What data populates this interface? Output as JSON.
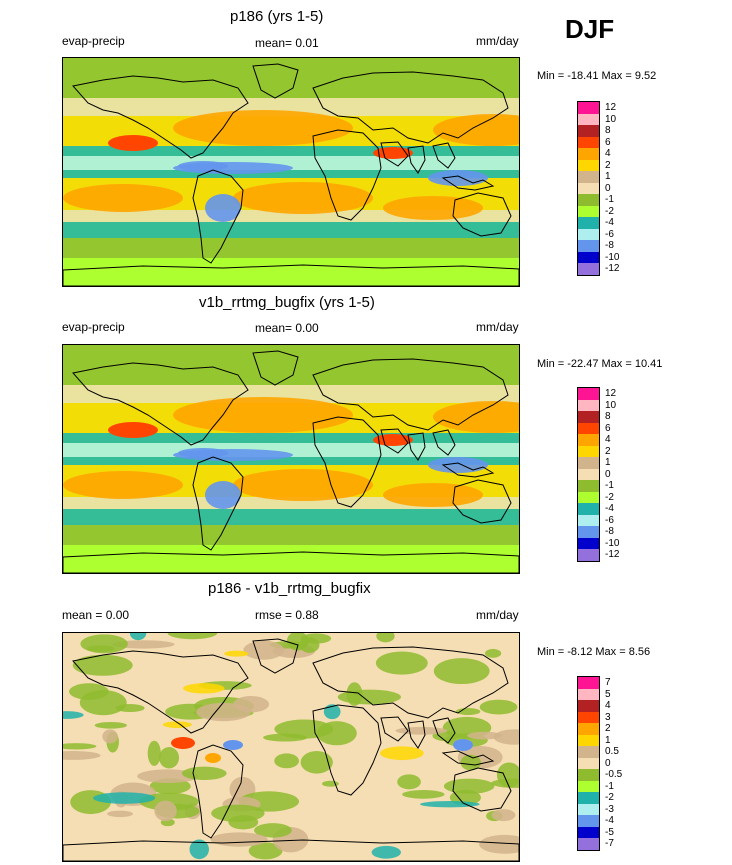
{
  "header": {
    "season": "DJF"
  },
  "panels": [
    {
      "title": "p186 (yrs 1-5)",
      "left_label": "evap-precip",
      "center_label": "mean=  0.01",
      "right_label": "mm/day",
      "minmax": "Min = -18.41 Max =   9.52",
      "colorbar": {
        "levels": [
          "12",
          "10",
          "8",
          "6",
          "4",
          "2",
          "1",
          "0",
          "-1",
          "-2",
          "-4",
          "-6",
          "-8",
          "-10",
          "-12"
        ],
        "colors": [
          "#ff1493",
          "#ffb6c1",
          "#b22222",
          "#ff4500",
          "#ffa500",
          "#ffd700",
          "#d2b48c",
          "#f5deb3",
          "#8fbc2f",
          "#adff2f",
          "#20b2aa",
          "#afeeee",
          "#6495ed",
          "#0000cd",
          "#9370db"
        ]
      }
    },
    {
      "title": "v1b_rrtmg_bugfix (yrs 1-5)",
      "left_label": "evap-precip",
      "center_label": "mean=  0.00",
      "right_label": "mm/day",
      "minmax": "Min = -22.47 Max =  10.41",
      "colorbar": {
        "levels": [
          "12",
          "10",
          "8",
          "6",
          "4",
          "2",
          "1",
          "0",
          "-1",
          "-2",
          "-4",
          "-6",
          "-8",
          "-10",
          "-12"
        ],
        "colors": [
          "#ff1493",
          "#ffb6c1",
          "#b22222",
          "#ff4500",
          "#ffa500",
          "#ffd700",
          "#d2b48c",
          "#f5deb3",
          "#8fbc2f",
          "#adff2f",
          "#20b2aa",
          "#afeeee",
          "#6495ed",
          "#0000cd",
          "#9370db"
        ]
      }
    },
    {
      "title": "p186 - v1b_rrtmg_bugfix",
      "left_label": "mean =   0.00",
      "center_label": "rmse =   0.88",
      "right_label": "mm/day",
      "minmax": "Min =  -8.12 Max =   8.56",
      "colorbar": {
        "levels": [
          "7",
          "5",
          "4",
          "3",
          "2",
          "1",
          "0.5",
          "0",
          "-0.5",
          "-1",
          "-2",
          "-3",
          "-4",
          "-5",
          "-7"
        ],
        "colors": [
          "#ff1493",
          "#ffb6c1",
          "#b22222",
          "#ff4500",
          "#ffa500",
          "#ffd700",
          "#d2b48c",
          "#f5deb3",
          "#8fbc2f",
          "#adff2f",
          "#20b2aa",
          "#afeeee",
          "#6495ed",
          "#0000cd",
          "#9370db"
        ]
      }
    }
  ],
  "chart_data": {
    "type": "heatmap",
    "title": "evap-precip DJF",
    "units": "mm/day",
    "panels": [
      {
        "name": "p186 (yrs 1-5)",
        "mean": 0.01,
        "min": -18.41,
        "max": 9.52
      },
      {
        "name": "v1b_rrtmg_bugfix (yrs 1-5)",
        "mean": 0.0,
        "min": -22.47,
        "max": 10.41
      },
      {
        "name": "p186 - v1b_rrtmg_bugfix",
        "mean": 0.0,
        "rmse": 0.88,
        "min": -8.12,
        "max": 8.56
      }
    ]
  }
}
